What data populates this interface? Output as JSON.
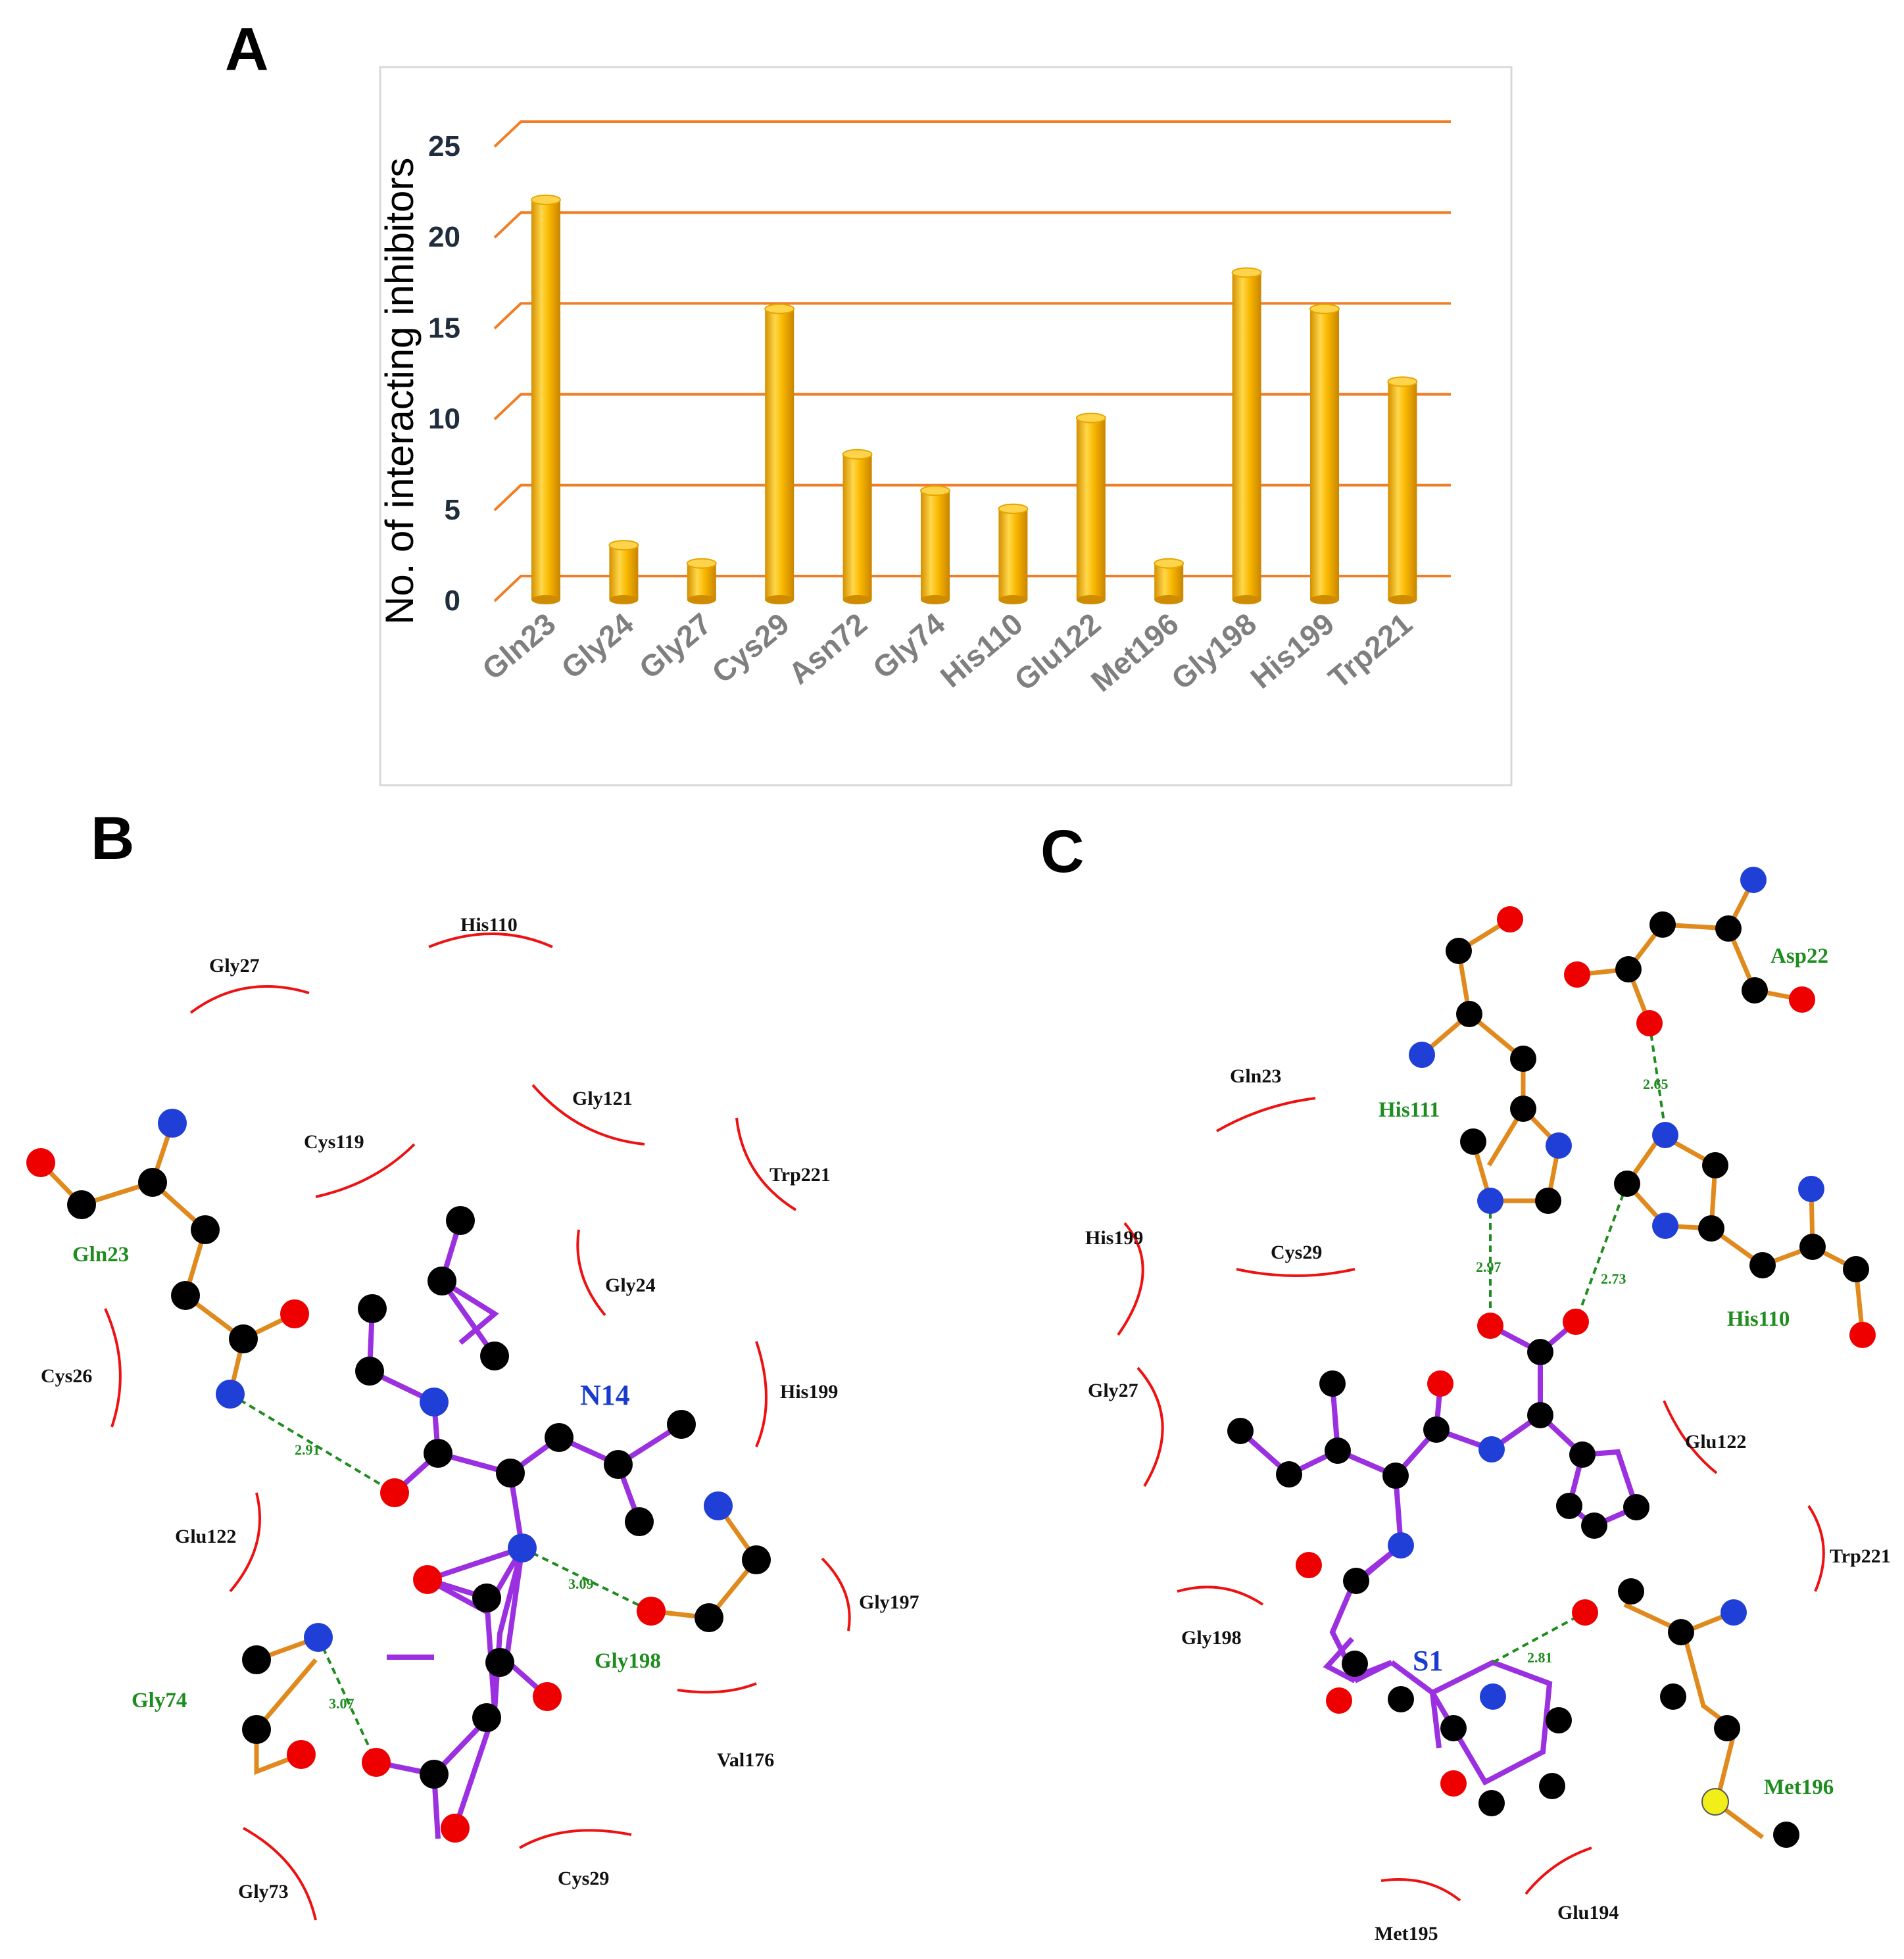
{
  "figure": {
    "panel_a_letter": "A",
    "panel_b_letter": "B",
    "panel_c_letter": "C"
  },
  "chart_data": {
    "type": "bar",
    "title": "",
    "xlabel": "",
    "ylabel": "No. of interacting inhibitors",
    "categories": [
      "Gln23",
      "Gly24",
      "Gly27",
      "Cys29",
      "Asn72",
      "Gly74",
      "His110",
      "Glu122",
      "Met196",
      "Gly198",
      "His199",
      "Trp221"
    ],
    "values": [
      22,
      3,
      2,
      16,
      8,
      6,
      5,
      10,
      2,
      18,
      16,
      12
    ],
    "yticks": [
      "0",
      "5",
      "10",
      "15",
      "20",
      "25"
    ],
    "ylim": [
      0,
      25
    ],
    "grid": true,
    "colors": {
      "bar": "#f7b500",
      "bar_light": "#ffe27a",
      "bar_dark": "#c98a00",
      "grid": "#f07e26",
      "frame": "#d9d9d9"
    }
  },
  "panel_b": {
    "ligand": "N14",
    "residues": [
      "His110",
      "Gly27",
      "Gly121",
      "Cys119",
      "Trp221",
      "Gly24",
      "Cys26",
      "His199",
      "Glu122",
      "Gly197",
      "Val176",
      "Gly73",
      "Cys29"
    ],
    "hbond_residues": [
      "Gln23",
      "Gly198",
      "Gly74"
    ],
    "distances": [
      "2.91",
      "3.09",
      "3.07"
    ]
  },
  "panel_c": {
    "ligand": "S1",
    "residues": [
      "Gln23",
      "His199",
      "Cys29",
      "Gly27",
      "Glu122",
      "Trp221",
      "Gly198",
      "Met195",
      "Glu194"
    ],
    "hbond_residues": [
      "His111",
      "Asp22",
      "His110",
      "Met196"
    ],
    "distances": [
      "2.65",
      "2.97",
      "2.73",
      "2.81"
    ]
  },
  "colors": {
    "ligand_bond": "#9b30e0",
    "residue_bond": "#e08a1e",
    "carbon": "#000000",
    "oxygen": "#ee0000",
    "nitrogen": "#1f3fd6",
    "sulfur": "#f2ee1a",
    "hbond": "#1e8c1e",
    "hydrophobic": "#ee1111"
  }
}
